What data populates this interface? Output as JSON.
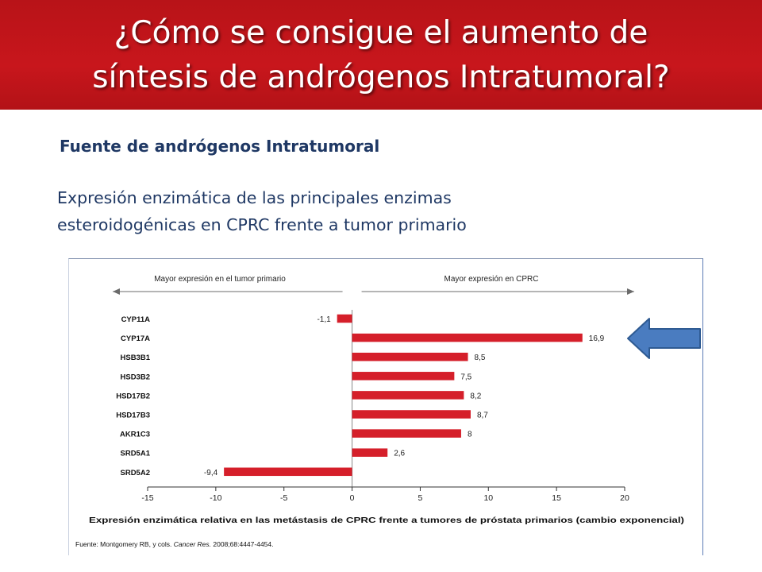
{
  "header": {
    "title_line1": "¿Cómo se consigue el aumento de",
    "title_line2": "síntesis de andrógenos Intratumoral?"
  },
  "subtitle": "Fuente de andrógenos Intratumoral",
  "description": {
    "line1": "Expresión enzimática de las principales enzimas",
    "line2": "esteroidogénicas en CPRC frente a tumor primario"
  },
  "colors": {
    "header_bg": "#c8161c",
    "bar": "#d51f2a",
    "text_blue": "#1f3864",
    "arrow": "#4a7cc0"
  },
  "arrow_icon": "left-arrow-icon",
  "chart_data": {
    "type": "bar",
    "orientation": "horizontal",
    "left_direction_label": "Mayor expresión en el tumor primario",
    "right_direction_label": "Mayor expresión en CPRC",
    "categories": [
      "CYP11A",
      "CYP17A",
      "HSB3B1",
      "HSD3B2",
      "HSD17B2",
      "HSD17B3",
      "AKR1C3",
      "SRD5A1",
      "SRD5A2"
    ],
    "values": [
      -1.1,
      16.9,
      8.5,
      7.5,
      8.2,
      8.7,
      8,
      2.6,
      -9.4
    ],
    "value_labels": [
      "-1,1",
      "16,9",
      "8,5",
      "7,5",
      "8,2",
      "8,7",
      "8",
      "2,6",
      "-9,4"
    ],
    "xlim": [
      -15,
      20
    ],
    "xticks": [
      -15,
      -10,
      -5,
      0,
      5,
      10,
      15,
      20
    ],
    "xtick_labels": [
      "-15",
      "-10",
      "-5",
      "0",
      "5",
      "10",
      "15",
      "20"
    ],
    "xlabel": "Expresión enzimática relativa en las metástasis de CPRC frente a tumores de próstata primarios (cambio exponencial)",
    "source_prefix": "Fuente: Montgomery RB, y cols. ",
    "source_journal": "Cancer Res.",
    "source_suffix": " 2008;68:4447-4454.",
    "grid": false
  }
}
